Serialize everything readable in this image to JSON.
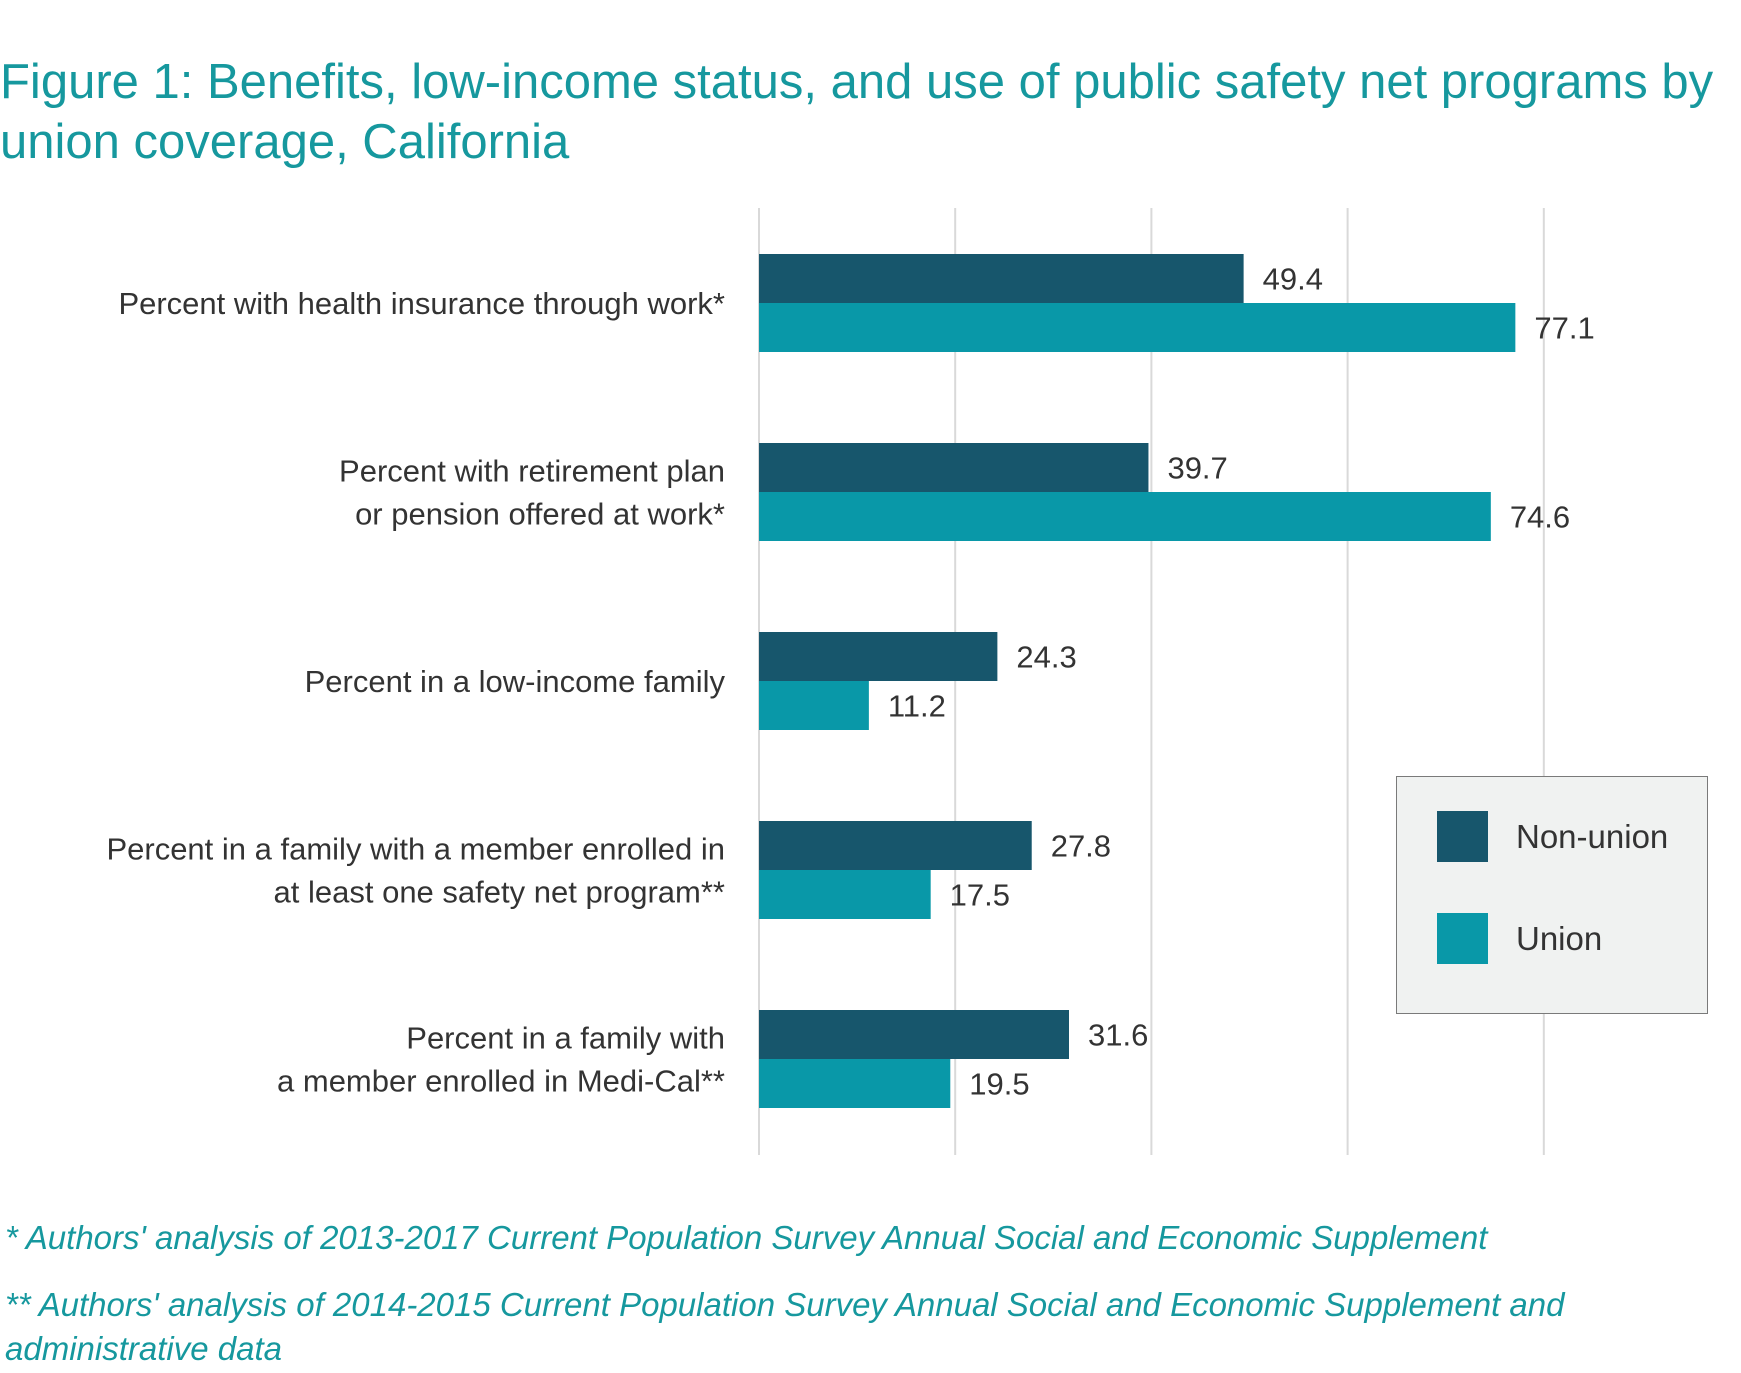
{
  "title": "Figure 1: Benefits, low-income status, and use of public safety net programs by union coverage, California",
  "colors": {
    "non_union": "#17566c",
    "union": "#0998a8",
    "grid": "#d9d9d9",
    "title": "#16989e"
  },
  "chart_data": {
    "type": "bar",
    "orientation": "horizontal",
    "categories": [
      "Percent with health insurance through work*",
      "Percent with retirement plan\nor pension offered at work*",
      "Percent in a low-income family",
      "Percent in a family with a member enrolled in\nat least one safety net program**",
      "Percent in a family with\na member enrolled in Medi-Cal**"
    ],
    "series": [
      {
        "name": "Non-union",
        "values": [
          49.4,
          39.7,
          24.3,
          27.8,
          31.6
        ]
      },
      {
        "name": "Union",
        "values": [
          77.1,
          74.6,
          11.2,
          17.5,
          19.5
        ]
      }
    ],
    "value_labels": {
      "non_union": [
        "49.4",
        "39.7",
        "24.3",
        "27.8",
        "31.6"
      ],
      "union": [
        "77.1",
        "74.6",
        "11.2",
        "17.5",
        "19.5"
      ]
    },
    "xlim": [
      0,
      100
    ],
    "x_gridlines": [
      0,
      20,
      40,
      60,
      80
    ],
    "grid": true,
    "legend": "right"
  },
  "legend": {
    "items": [
      {
        "label": "Non-union"
      },
      {
        "label": "Union"
      }
    ]
  },
  "footnotes": [
    "* Authors' analysis of 2013-2017 Current Population Survey Annual Social and Economic Supplement",
    "** Authors' analysis of 2014-2015 Current Population Survey Annual Social and Economic Supplement and administrative data"
  ]
}
